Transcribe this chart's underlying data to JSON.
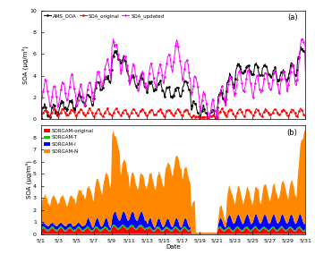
{
  "title_a": "(a)",
  "title_b": "(b)",
  "xlabel": "Date",
  "ylabel_a": "SOA (μg/m³)",
  "ylabel_b": "SOA (μg/m³)",
  "x_tick_labels": [
    "5/1",
    "5/3",
    "5/5",
    "5/7",
    "5/9",
    "5/11",
    "5/13",
    "5/15",
    "5/17",
    "5/19",
    "5/21",
    "5/23",
    "5/25",
    "5/27",
    "5/29",
    "5/31"
  ],
  "ylim_a": [
    0,
    10
  ],
  "ylim_b": [
    0,
    9
  ],
  "yticks_a": [
    0,
    2,
    4,
    6,
    8,
    10
  ],
  "yticks_b": [
    0,
    1,
    2,
    3,
    4,
    5,
    6,
    7,
    8
  ],
  "colors": {
    "AMS_OOA": "#000000",
    "SOA_original": "#ff0000",
    "SOA_updated": "#ff00ff",
    "SORGAM_original": "#ff0000",
    "SORGAM_T": "#00cc00",
    "SORGAM_I": "#0000ff",
    "SORGAM_N": "#ff8800"
  },
  "background_color": "#ffffff"
}
